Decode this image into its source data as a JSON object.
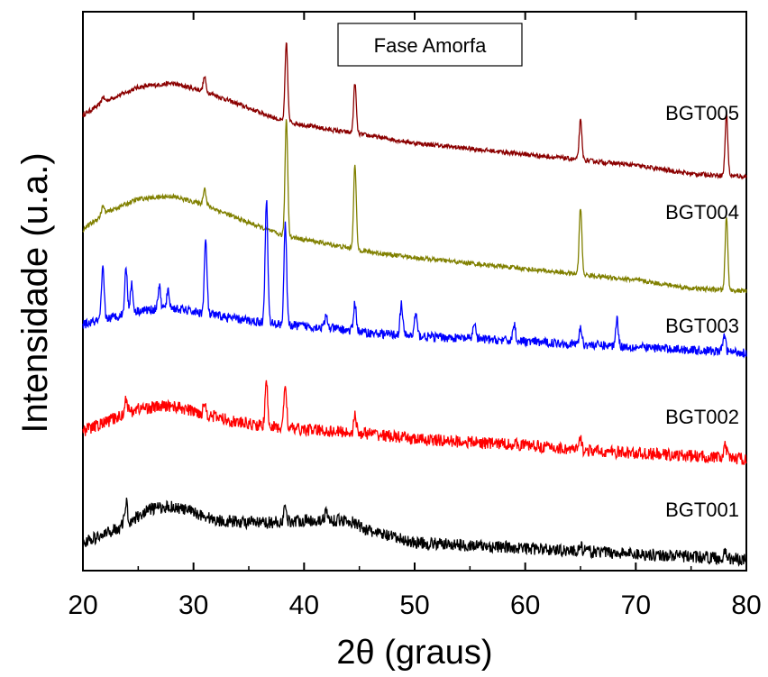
{
  "chart_data": {
    "type": "line",
    "title": "",
    "xlabel": "2θ (graus)",
    "ylabel": "Intensidade (u.a.)",
    "xlim": [
      20,
      80
    ],
    "x_ticks": [
      20,
      30,
      40,
      50,
      60,
      70,
      80
    ],
    "y_ticks": [],
    "grid": false,
    "annotation": "Fase Amorfa",
    "series": [
      {
        "name": "BGT005",
        "color": "#8b0000",
        "baseline": [
          [
            20,
            0.815
          ],
          [
            22,
            0.84
          ],
          [
            25,
            0.865
          ],
          [
            28,
            0.872
          ],
          [
            31,
            0.858
          ],
          [
            34,
            0.835
          ],
          [
            38,
            0.805
          ],
          [
            42,
            0.79
          ],
          [
            46,
            0.778
          ],
          [
            50,
            0.765
          ],
          [
            55,
            0.755
          ],
          [
            60,
            0.745
          ],
          [
            65,
            0.735
          ],
          [
            70,
            0.725
          ],
          [
            75,
            0.71
          ],
          [
            80,
            0.705
          ]
        ],
        "peaks": [
          [
            21.8,
            0.01
          ],
          [
            31.0,
            0.025
          ],
          [
            38.4,
            0.14
          ],
          [
            44.6,
            0.09
          ],
          [
            65.0,
            0.07
          ],
          [
            78.2,
            0.11
          ]
        ],
        "noise": 0.004
      },
      {
        "name": "BGT004",
        "color": "#808000",
        "baseline": [
          [
            20,
            0.61
          ],
          [
            22,
            0.64
          ],
          [
            25,
            0.665
          ],
          [
            28,
            0.67
          ],
          [
            31,
            0.655
          ],
          [
            34,
            0.63
          ],
          [
            38,
            0.6
          ],
          [
            42,
            0.585
          ],
          [
            46,
            0.57
          ],
          [
            50,
            0.56
          ],
          [
            55,
            0.55
          ],
          [
            60,
            0.54
          ],
          [
            65,
            0.53
          ],
          [
            70,
            0.52
          ],
          [
            75,
            0.505
          ],
          [
            80,
            0.5
          ]
        ],
        "peaks": [
          [
            21.8,
            0.015
          ],
          [
            31.0,
            0.03
          ],
          [
            38.4,
            0.21
          ],
          [
            44.6,
            0.15
          ],
          [
            65.0,
            0.12
          ],
          [
            78.2,
            0.13
          ]
        ],
        "noise": 0.004
      },
      {
        "name": "BGT003",
        "color": "#0000ff",
        "baseline": [
          [
            20,
            0.44
          ],
          [
            22,
            0.45
          ],
          [
            25,
            0.465
          ],
          [
            28,
            0.47
          ],
          [
            31,
            0.46
          ],
          [
            34,
            0.45
          ],
          [
            38,
            0.44
          ],
          [
            42,
            0.435
          ],
          [
            46,
            0.425
          ],
          [
            50,
            0.42
          ],
          [
            55,
            0.415
          ],
          [
            60,
            0.41
          ],
          [
            65,
            0.405
          ],
          [
            70,
            0.4
          ],
          [
            75,
            0.395
          ],
          [
            80,
            0.39
          ]
        ],
        "peaks": [
          [
            21.8,
            0.09
          ],
          [
            23.9,
            0.08
          ],
          [
            24.4,
            0.05
          ],
          [
            26.9,
            0.04
          ],
          [
            27.7,
            0.03
          ],
          [
            31.1,
            0.13
          ],
          [
            36.6,
            0.22
          ],
          [
            38.3,
            0.18
          ],
          [
            42.0,
            0.02
          ],
          [
            44.6,
            0.05
          ],
          [
            48.8,
            0.055
          ],
          [
            50.1,
            0.04
          ],
          [
            55.4,
            0.03
          ],
          [
            59.0,
            0.03
          ],
          [
            65.0,
            0.03
          ],
          [
            68.3,
            0.05
          ],
          [
            78.0,
            0.03
          ]
        ],
        "noise": 0.008
      },
      {
        "name": "BGT002",
        "color": "#ff0000",
        "baseline": [
          [
            20,
            0.25
          ],
          [
            22,
            0.265
          ],
          [
            25,
            0.29
          ],
          [
            28,
            0.295
          ],
          [
            31,
            0.28
          ],
          [
            34,
            0.265
          ],
          [
            38,
            0.255
          ],
          [
            42,
            0.25
          ],
          [
            46,
            0.245
          ],
          [
            50,
            0.235
          ],
          [
            55,
            0.23
          ],
          [
            60,
            0.225
          ],
          [
            65,
            0.215
          ],
          [
            70,
            0.21
          ],
          [
            75,
            0.205
          ],
          [
            80,
            0.2
          ]
        ],
        "peaks": [
          [
            23.9,
            0.03
          ],
          [
            31.0,
            0.02
          ],
          [
            36.6,
            0.075
          ],
          [
            38.3,
            0.08
          ],
          [
            44.6,
            0.03
          ],
          [
            65.0,
            0.02
          ],
          [
            78.1,
            0.02
          ]
        ],
        "noise": 0.011
      },
      {
        "name": "BGT001",
        "color": "#000000",
        "baseline": [
          [
            20,
            0.05
          ],
          [
            22,
            0.065
          ],
          [
            24,
            0.085
          ],
          [
            26,
            0.11
          ],
          [
            28,
            0.115
          ],
          [
            30,
            0.105
          ],
          [
            32,
            0.09
          ],
          [
            36,
            0.085
          ],
          [
            40,
            0.09
          ],
          [
            44,
            0.09
          ],
          [
            46,
            0.07
          ],
          [
            50,
            0.05
          ],
          [
            55,
            0.045
          ],
          [
            60,
            0.04
          ],
          [
            65,
            0.035
          ],
          [
            70,
            0.03
          ],
          [
            75,
            0.025
          ],
          [
            80,
            0.02
          ]
        ],
        "peaks": [
          [
            23.9,
            0.04
          ],
          [
            38.3,
            0.025
          ],
          [
            42.0,
            0.015
          ],
          [
            65.0,
            0.01
          ],
          [
            78.1,
            0.01
          ]
        ],
        "noise": 0.011
      }
    ]
  }
}
